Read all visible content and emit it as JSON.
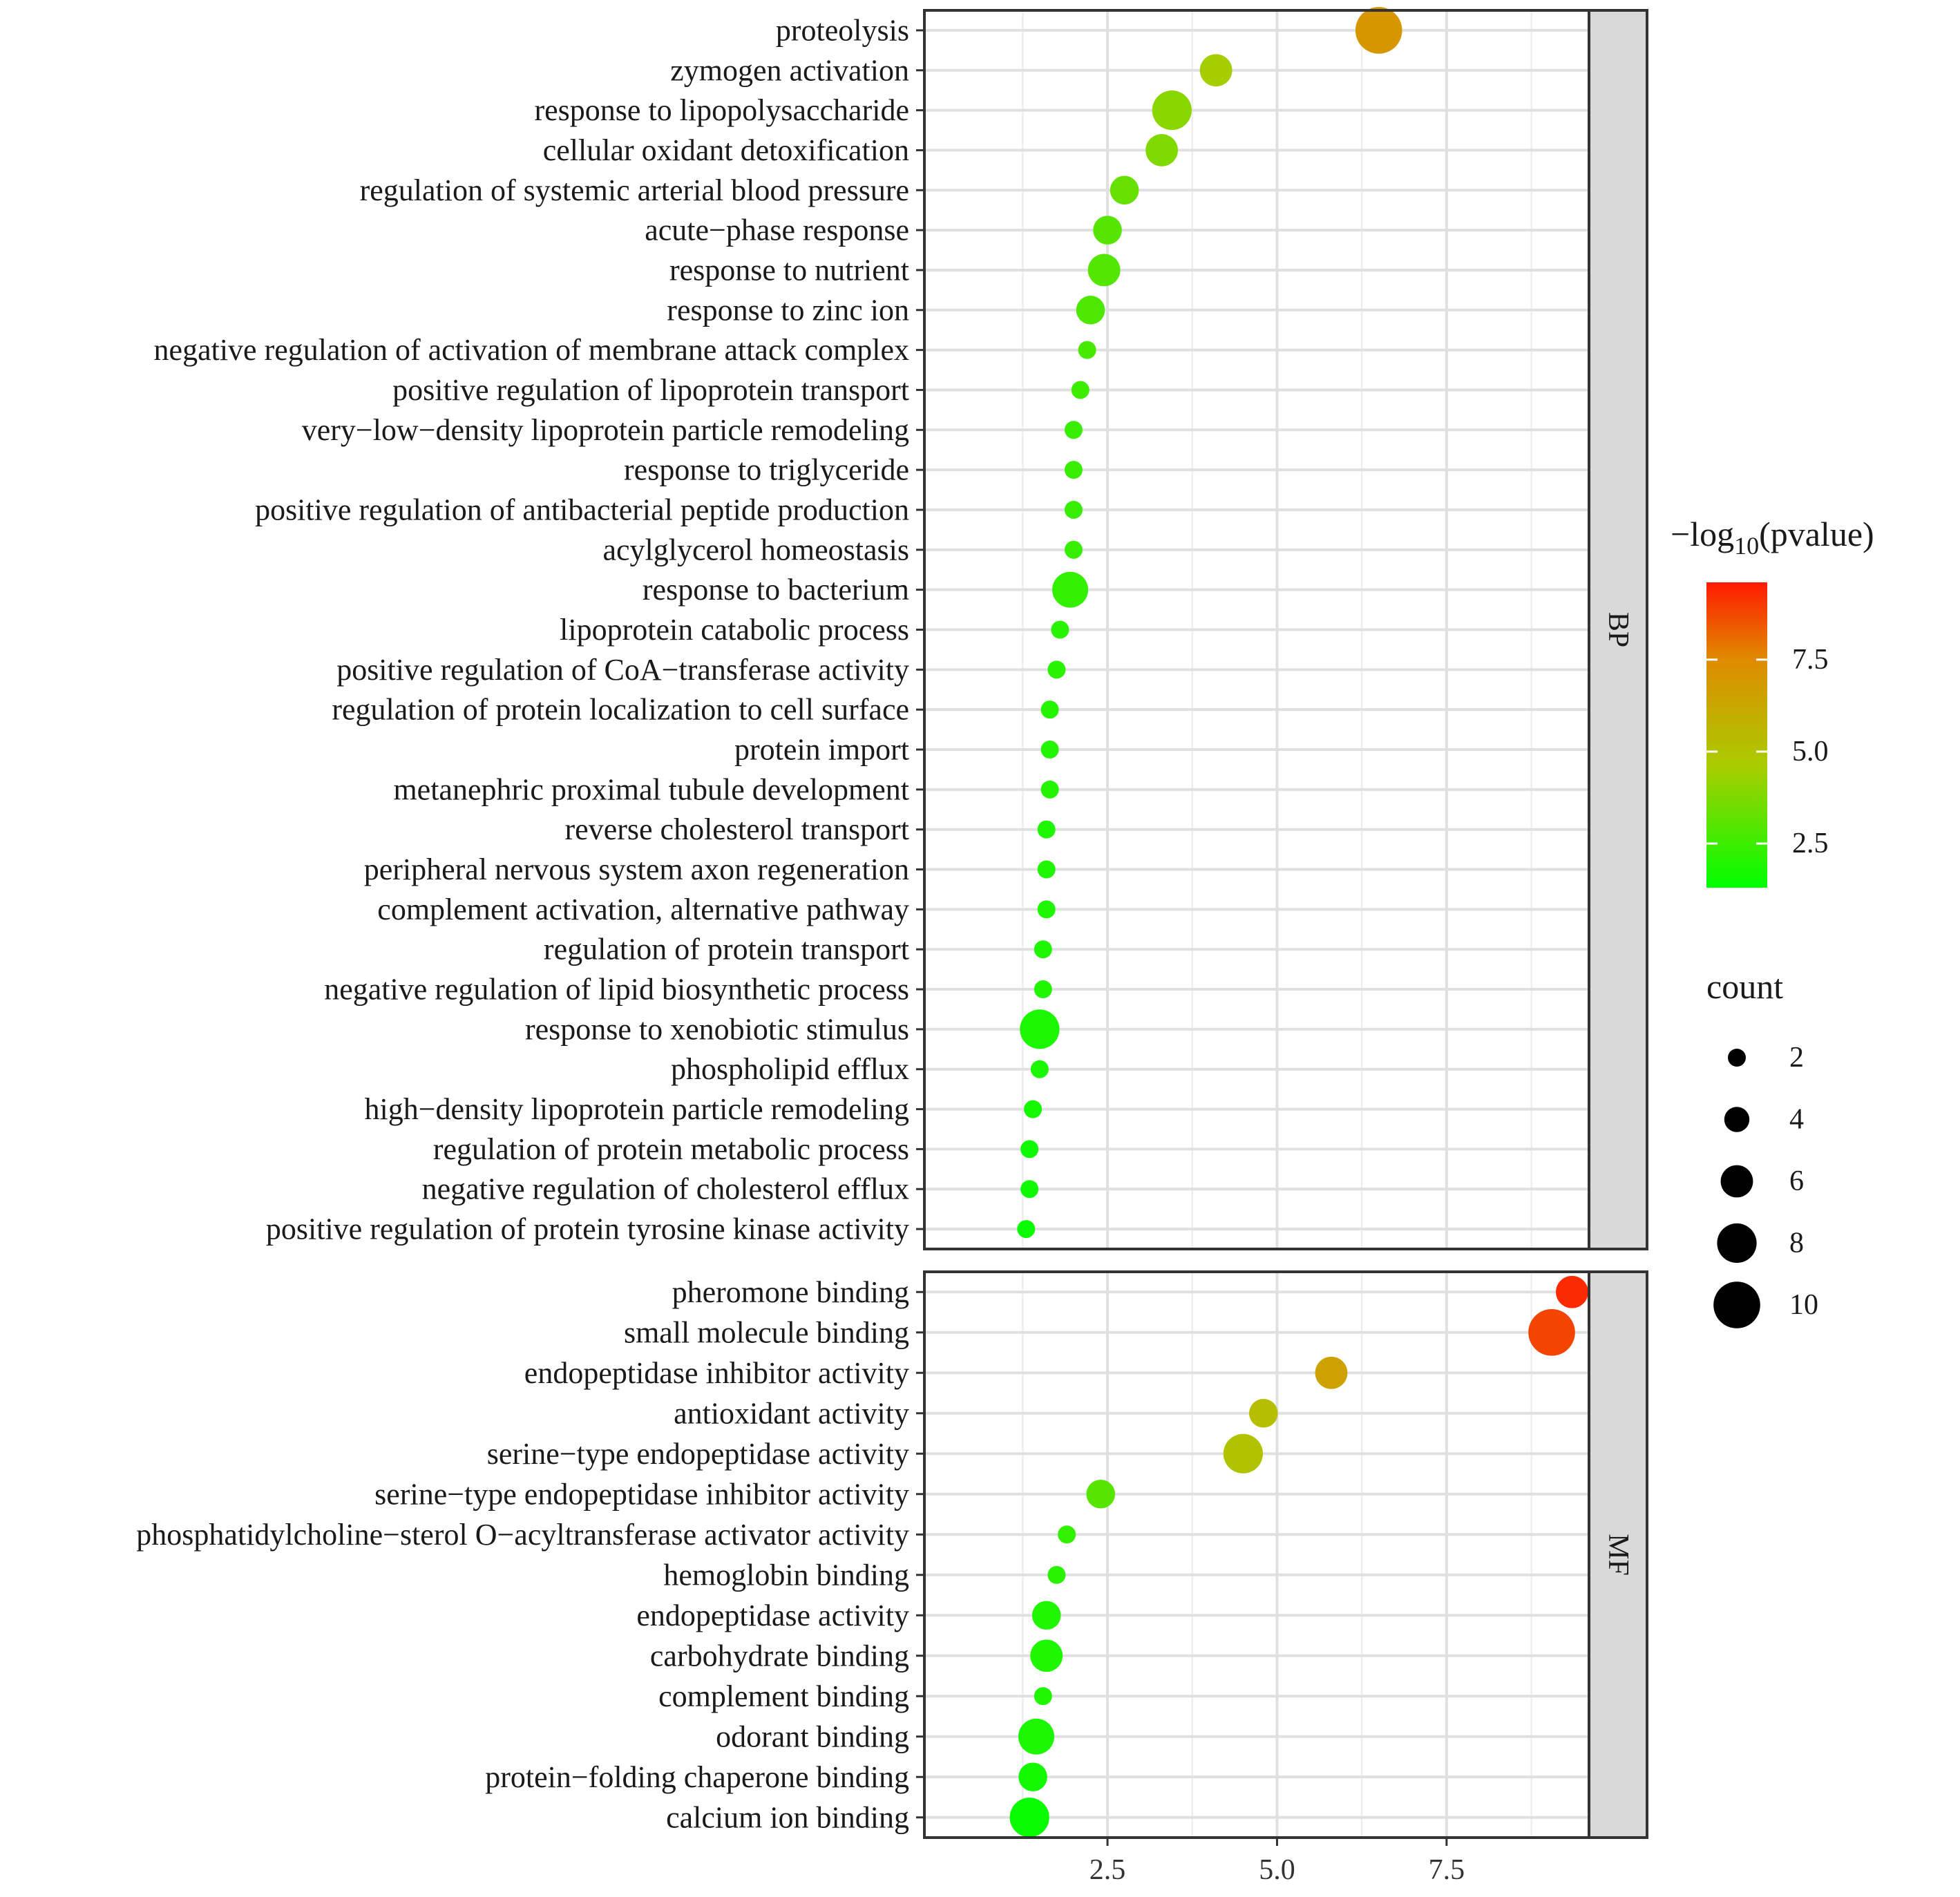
{
  "chart_data": {
    "type": "scatter",
    "subtype": "faceted dot plot",
    "x_ticks": [
      2.5,
      5.0,
      7.5
    ],
    "x_tick_labels": [
      "2.5",
      "5.0",
      "7.5"
    ],
    "xlim": [
      -0.2,
      9.6
    ],
    "xlabel": "",
    "ylabel": "",
    "grid": true,
    "facets": [
      {
        "label": "BP",
        "terms": [
          {
            "term": "proteolysis",
            "x": 6.5,
            "pvalue_log": 7.0,
            "count": 10
          },
          {
            "term": "zymogen activation",
            "x": 4.1,
            "pvalue_log": 4.5,
            "count": 6
          },
          {
            "term": "response to lipopolysaccharide",
            "x": 3.45,
            "pvalue_log": 4.0,
            "count": 8
          },
          {
            "term": "cellular oxidant detoxification",
            "x": 3.3,
            "pvalue_log": 3.8,
            "count": 6
          },
          {
            "term": "regulation of systemic arterial blood pressure",
            "x": 2.75,
            "pvalue_log": 3.3,
            "count": 5
          },
          {
            "term": "acute−phase response",
            "x": 2.5,
            "pvalue_log": 3.0,
            "count": 5
          },
          {
            "term": "response to nutrient",
            "x": 2.45,
            "pvalue_log": 2.9,
            "count": 6
          },
          {
            "term": "response to zinc ion",
            "x": 2.25,
            "pvalue_log": 2.8,
            "count": 5
          },
          {
            "term": "negative regulation of activation of membrane attack complex",
            "x": 2.2,
            "pvalue_log": 2.7,
            "count": 2
          },
          {
            "term": "positive regulation of lipoprotein transport",
            "x": 2.1,
            "pvalue_log": 2.5,
            "count": 2
          },
          {
            "term": "very−low−density lipoprotein particle remodeling",
            "x": 2.0,
            "pvalue_log": 2.4,
            "count": 2
          },
          {
            "term": "response to triglyceride",
            "x": 2.0,
            "pvalue_log": 2.4,
            "count": 2
          },
          {
            "term": "positive regulation of antibacterial peptide production",
            "x": 2.0,
            "pvalue_log": 2.4,
            "count": 2
          },
          {
            "term": "acylglycerol homeostasis",
            "x": 2.0,
            "pvalue_log": 2.4,
            "count": 2
          },
          {
            "term": "response to bacterium",
            "x": 1.95,
            "pvalue_log": 2.3,
            "count": 7
          },
          {
            "term": "lipoprotein catabolic process",
            "x": 1.8,
            "pvalue_log": 2.1,
            "count": 2
          },
          {
            "term": "positive regulation of CoA−transferase activity",
            "x": 1.75,
            "pvalue_log": 2.1,
            "count": 2
          },
          {
            "term": "regulation of protein localization to cell surface",
            "x": 1.65,
            "pvalue_log": 2.0,
            "count": 2
          },
          {
            "term": "protein import",
            "x": 1.65,
            "pvalue_log": 2.0,
            "count": 2
          },
          {
            "term": "metanephric proximal tubule development",
            "x": 1.65,
            "pvalue_log": 2.0,
            "count": 2
          },
          {
            "term": "reverse cholesterol transport",
            "x": 1.6,
            "pvalue_log": 1.9,
            "count": 2
          },
          {
            "term": "peripheral nervous system axon regeneration",
            "x": 1.6,
            "pvalue_log": 1.9,
            "count": 2
          },
          {
            "term": "complement activation, alternative pathway",
            "x": 1.6,
            "pvalue_log": 1.9,
            "count": 2
          },
          {
            "term": "regulation of protein transport",
            "x": 1.55,
            "pvalue_log": 1.9,
            "count": 2
          },
          {
            "term": "negative regulation of lipid biosynthetic process",
            "x": 1.55,
            "pvalue_log": 1.9,
            "count": 2
          },
          {
            "term": "response to xenobiotic stimulus",
            "x": 1.5,
            "pvalue_log": 1.8,
            "count": 8
          },
          {
            "term": "phospholipid efflux",
            "x": 1.5,
            "pvalue_log": 1.8,
            "count": 2
          },
          {
            "term": "high−density lipoprotein particle remodeling",
            "x": 1.4,
            "pvalue_log": 1.7,
            "count": 2
          },
          {
            "term": "regulation of protein metabolic process",
            "x": 1.35,
            "pvalue_log": 1.6,
            "count": 2
          },
          {
            "term": "negative regulation of cholesterol efflux",
            "x": 1.35,
            "pvalue_log": 1.6,
            "count": 2
          },
          {
            "term": "positive regulation of protein tyrosine kinase activity",
            "x": 1.3,
            "pvalue_log": 1.5,
            "count": 2
          }
        ]
      },
      {
        "label": "MF",
        "terms": [
          {
            "term": "pheromone binding",
            "x": 9.35,
            "pvalue_log": 9.3,
            "count": 6
          },
          {
            "term": "small molecule binding",
            "x": 9.05,
            "pvalue_log": 8.8,
            "count": 10
          },
          {
            "term": "endopeptidase inhibitor activity",
            "x": 5.8,
            "pvalue_log": 6.5,
            "count": 6
          },
          {
            "term": "antioxidant activity",
            "x": 4.8,
            "pvalue_log": 5.3,
            "count": 5
          },
          {
            "term": "serine−type endopeptidase activity",
            "x": 4.5,
            "pvalue_log": 5.0,
            "count": 8
          },
          {
            "term": "serine−type endopeptidase inhibitor activity",
            "x": 2.4,
            "pvalue_log": 3.0,
            "count": 5
          },
          {
            "term": "phosphatidylcholine−sterol O−acyltransferase activator activity",
            "x": 1.9,
            "pvalue_log": 2.3,
            "count": 2
          },
          {
            "term": "hemoglobin binding",
            "x": 1.75,
            "pvalue_log": 2.1,
            "count": 2
          },
          {
            "term": "endopeptidase activity",
            "x": 1.6,
            "pvalue_log": 1.9,
            "count": 5
          },
          {
            "term": "carbohydrate binding",
            "x": 1.6,
            "pvalue_log": 1.9,
            "count": 6
          },
          {
            "term": "complement binding",
            "x": 1.55,
            "pvalue_log": 1.9,
            "count": 2
          },
          {
            "term": "odorant binding",
            "x": 1.45,
            "pvalue_log": 1.8,
            "count": 7
          },
          {
            "term": "protein−folding chaperone binding",
            "x": 1.4,
            "pvalue_log": 1.7,
            "count": 5
          },
          {
            "term": "calcium ion binding",
            "x": 1.35,
            "pvalue_log": 1.5,
            "count": 8
          }
        ]
      }
    ],
    "color_legend": {
      "title_prefix": "−log",
      "title_sub": "10",
      "title_suffix": "(pvalue)",
      "range": [
        1.3,
        9.6
      ],
      "ticks": [
        2.5,
        5.0,
        7.5
      ],
      "tick_labels": [
        "2.5",
        "5.0",
        "7.5"
      ],
      "low_color": "#00ff00",
      "mid_color": "#aacc00",
      "high_color": "#ff0000"
    },
    "size_legend": {
      "title": "count",
      "values": [
        2,
        4,
        6,
        8,
        10
      ],
      "labels": [
        "2",
        "4",
        "6",
        "8",
        "10"
      ]
    }
  }
}
